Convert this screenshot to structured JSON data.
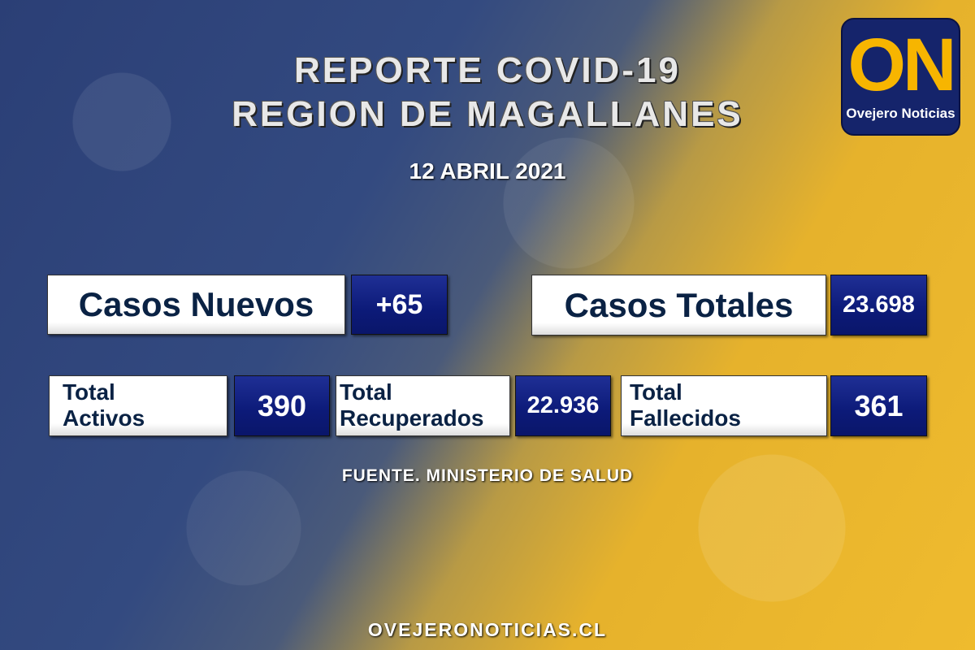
{
  "header": {
    "title_line1": "REPORTE COVID-19",
    "title_line2": "REGION DE MAGALLANES",
    "date": "12 ABRIL 2021"
  },
  "logo": {
    "mark": "ON",
    "name": "Ovejero Noticias"
  },
  "stats": {
    "nuevos": {
      "label": "Casos Nuevos",
      "value": "+65"
    },
    "totales": {
      "label": "Casos Totales",
      "value": "23.698"
    },
    "activos": {
      "label1": "Total",
      "label2": "Activos",
      "value": "390"
    },
    "recuperados": {
      "label1": "Total",
      "label2": "Recuperados",
      "value": "22.936"
    },
    "fallecidos": {
      "label1": "Total",
      "label2": "Fallecidos",
      "value": "361"
    }
  },
  "footer": {
    "source": "FUENTE. MINISTERIO DE SALUD",
    "url": "OVEJERONOTICIAS.CL"
  },
  "colors": {
    "bg_blue": "#2b3f76",
    "bg_yellow": "#efbb2e",
    "value_box": "#0c1a78",
    "label_text": "#0a2244"
  }
}
